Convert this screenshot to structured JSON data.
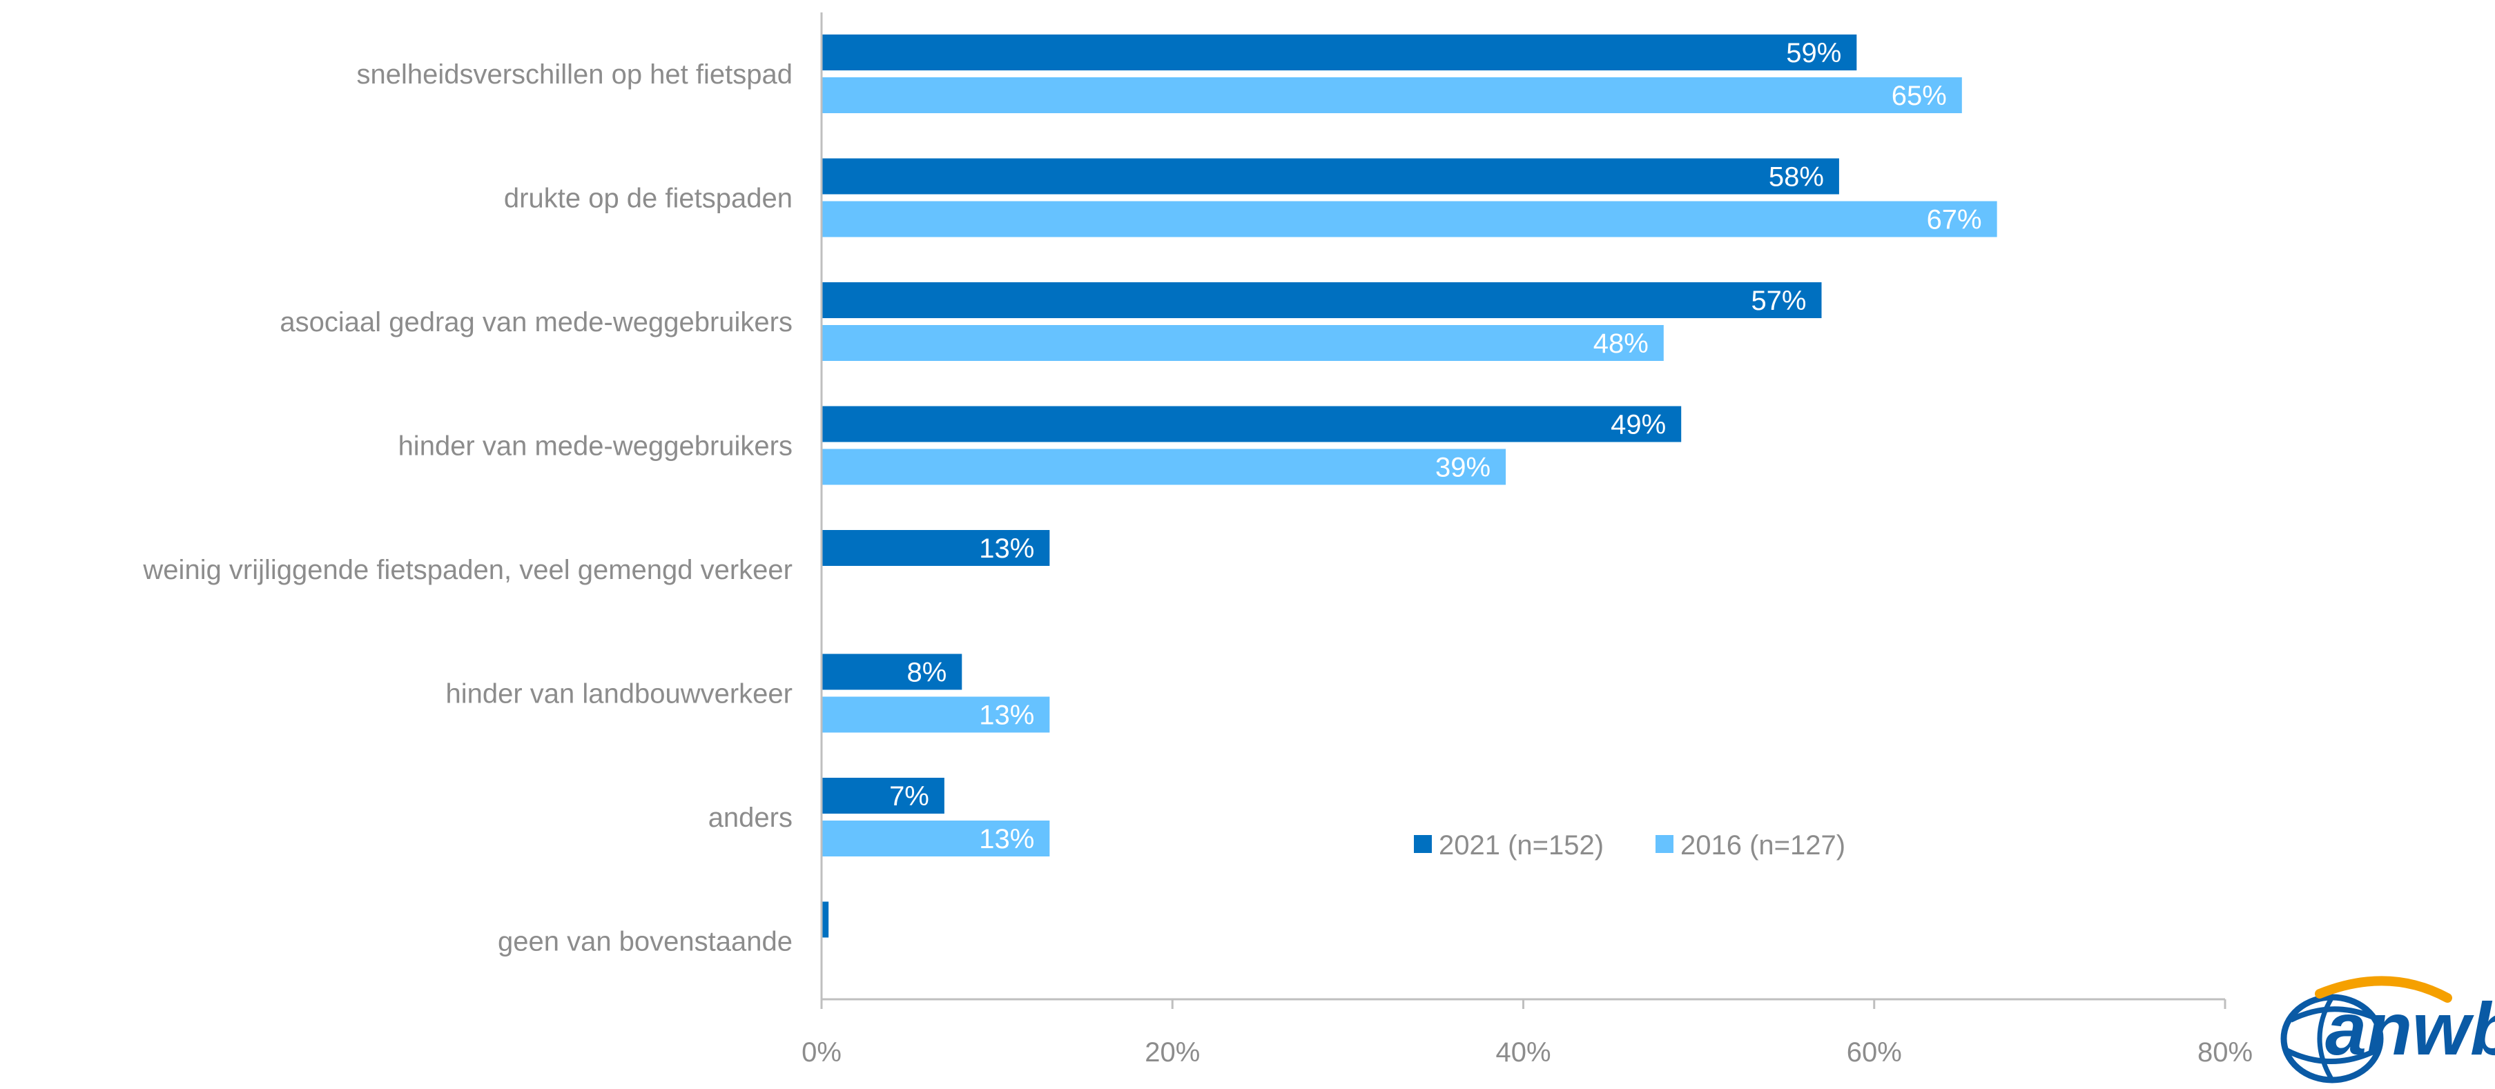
{
  "chart_data": {
    "type": "bar",
    "orientation": "horizontal",
    "categories": [
      "snelheidsverschillen op het fietspad",
      "drukte op de fietspaden",
      "asociaal gedrag van mede-weggebruikers",
      "hinder van mede-weggebruikers",
      "weinig vrijliggende fietspaden, veel gemengd verkeer",
      "hinder van landbouwverkeer",
      "anders",
      "geen van bovenstaande"
    ],
    "series": [
      {
        "name": "2021 (n=152)",
        "color": "#0070c0",
        "values": [
          59,
          58,
          57,
          49,
          13,
          8,
          7,
          0.4
        ],
        "labels": [
          "59%",
          "58%",
          "57%",
          "49%",
          "13%",
          "8%",
          "7%",
          ""
        ]
      },
      {
        "name": "2016 (n=127)",
        "color": "#66c2ff",
        "values": [
          65,
          67,
          48,
          39,
          null,
          13,
          13,
          null
        ],
        "labels": [
          "65%",
          "67%",
          "48%",
          "39%",
          "",
          "13%",
          "13%",
          ""
        ]
      }
    ],
    "xlim": [
      0,
      80
    ],
    "xticks": [
      "0%",
      "20%",
      "40%",
      "60%",
      "80%"
    ],
    "grid": false,
    "legend_position": "lower-right"
  },
  "logo": {
    "text": "anwb",
    "name": "anwb-logo"
  },
  "colors": {
    "axis": "#bfbfbf",
    "text": "#8c8c8c",
    "series_2021": "#0070c0",
    "series_2016": "#66c2ff",
    "logo": "#0a5aa5"
  }
}
